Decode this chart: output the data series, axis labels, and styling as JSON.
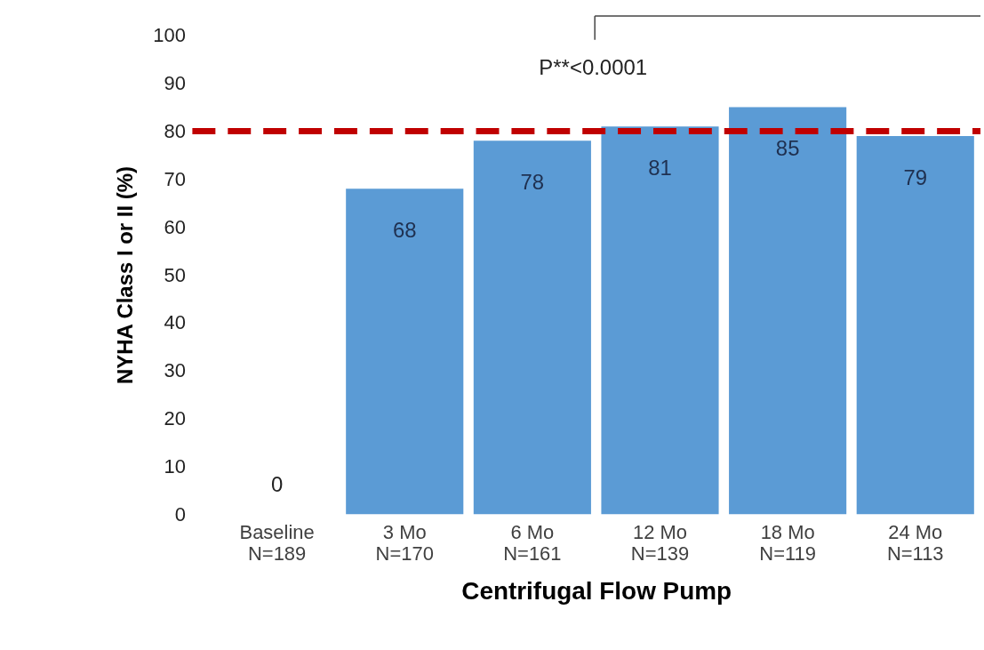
{
  "chart_data": {
    "type": "bar",
    "xlabel": "Centrifugal Flow Pump",
    "ylabel": "NYHA Class I or II (%)",
    "categories": [
      "Baseline\nN=189",
      "3 Mo\nN=170",
      "6 Mo\nN=161",
      "12 Mo\nN=139",
      "18 Mo\nN=119",
      "24 Mo\nN=113"
    ],
    "values": [
      0,
      68,
      78,
      81,
      85,
      79
    ],
    "color": "#5b9bd5",
    "data_labels": true,
    "ylim": [
      0,
      100
    ],
    "yticks": [
      0,
      10,
      20,
      30,
      40,
      50,
      60,
      70,
      80,
      90,
      100
    ],
    "grid": false,
    "ref_lines": [
      {
        "axis": "y",
        "value": 80,
        "color": "#c00000",
        "line_style": "dashed"
      }
    ],
    "annotations": [
      "P**<0.0001"
    ]
  }
}
